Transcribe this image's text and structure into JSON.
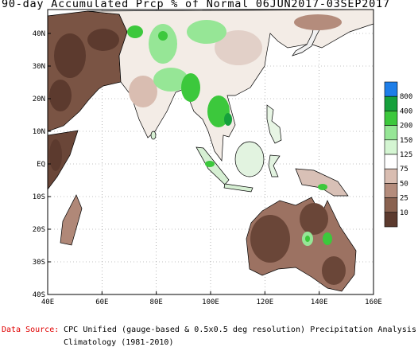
{
  "title": "90-day Accumulated Prcp % of Normal 06JUN2017-03SEP2017",
  "lat_ticks": [
    "40N",
    "30N",
    "20N",
    "10N",
    "EQ",
    "10S",
    "20S",
    "30S",
    "40S"
  ],
  "lon_ticks": [
    "40E",
    "60E",
    "80E",
    "100E",
    "120E",
    "140E",
    "160E"
  ],
  "legend": {
    "labels": [
      "800",
      "400",
      "200",
      "150",
      "125",
      "75",
      "50",
      "25",
      "10"
    ],
    "colors": [
      "#1e7ee8",
      "#16a03c",
      "#3cc83c",
      "#96e696",
      "#d4f5d2",
      "#ffffff",
      "#d9bdb1",
      "#b48c7c",
      "#8a6250",
      "#5c3a2e"
    ]
  },
  "source": {
    "label": "Data Source:",
    "line1": "CPC Unified (gauge-based & 0.5x0.5 deg resolution) Precipitation Analysis",
    "line2": "Climatology (1981-2010)"
  }
}
